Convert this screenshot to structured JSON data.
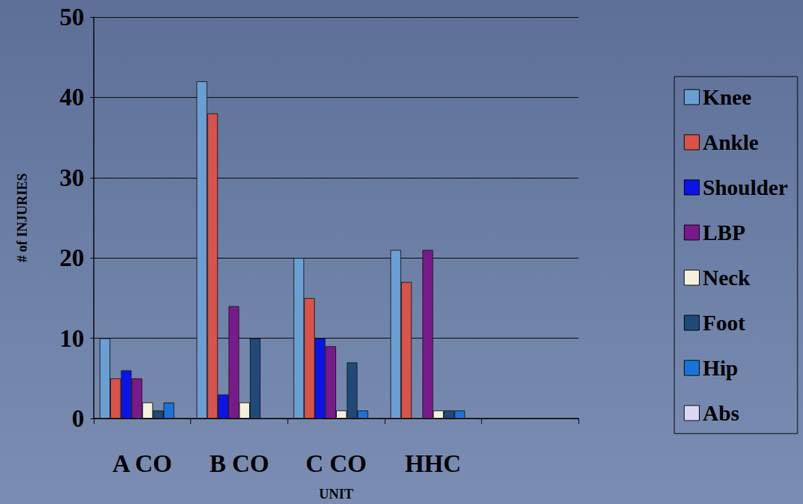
{
  "chart_data": {
    "type": "bar",
    "x_label": "UNIT",
    "y_label": "# of INJURIES",
    "categories": [
      "A CO",
      "B CO",
      "C CO",
      "HHC",
      null
    ],
    "series": [
      {
        "name": "Knee",
        "color": "#6a9fd4",
        "values": [
          10,
          42,
          20,
          21,
          0
        ]
      },
      {
        "name": "Ankle",
        "color": "#d9534a",
        "values": [
          5,
          38,
          15,
          17,
          0
        ]
      },
      {
        "name": "Shoulder",
        "color": "#0a14e8",
        "values": [
          6,
          3,
          10,
          0,
          0
        ]
      },
      {
        "name": "LBP",
        "color": "#7a1a8a",
        "values": [
          5,
          14,
          9,
          21,
          0
        ]
      },
      {
        "name": "Neck",
        "color": "#f5f0dc",
        "values": [
          2,
          2,
          1,
          1,
          0
        ]
      },
      {
        "name": "Foot",
        "color": "#1f4a78",
        "values": [
          1,
          10,
          7,
          1,
          0
        ]
      },
      {
        "name": "Hip",
        "color": "#1a73d8",
        "values": [
          2,
          0,
          1,
          1,
          0
        ]
      },
      {
        "name": "Abs",
        "color": "#d8d8f5",
        "values": [
          0,
          0,
          0,
          0,
          0
        ]
      }
    ],
    "ylim": [
      0,
      50
    ],
    "yticks": [
      0,
      10,
      20,
      30,
      40,
      50
    ],
    "grid": true,
    "legend": "right"
  }
}
